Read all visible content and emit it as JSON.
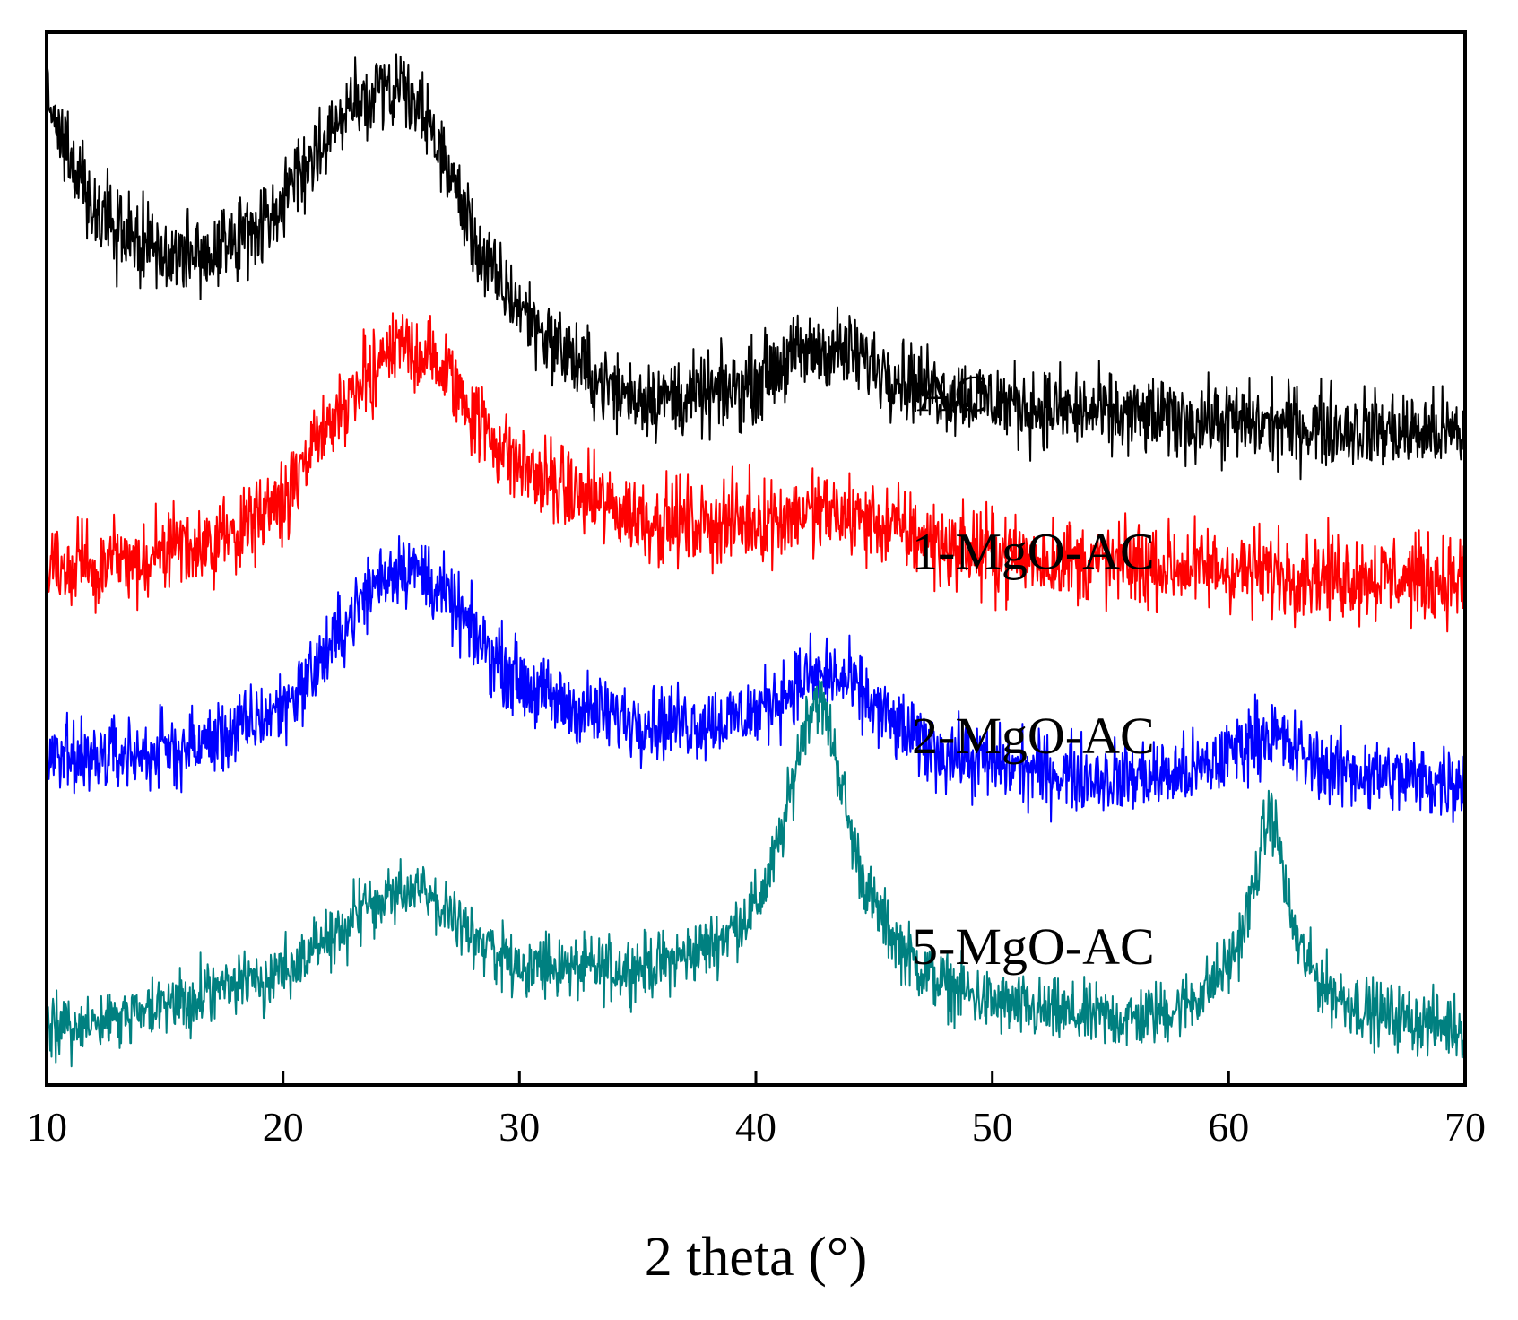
{
  "chart_data": {
    "type": "line",
    "title": "",
    "xlabel": "2 theta (°)",
    "ylabel": "",
    "xlim": [
      10,
      70
    ],
    "xticks": [
      10,
      20,
      30,
      40,
      50,
      60,
      70
    ],
    "xtick_labels": [
      "10",
      "20",
      "30",
      "40",
      "50",
      "60",
      "70"
    ],
    "ylim": [
      0,
      100
    ],
    "yticks_shown": false,
    "grid": false,
    "legend": "inline labels next to each curve",
    "series": [
      {
        "name": "AC",
        "label": "AC",
        "color": "#000000",
        "noise": 3.0,
        "label_at": [
          46.8,
          64.0
        ],
        "x": [
          10,
          11,
          12,
          13,
          14,
          15,
          16,
          17,
          18,
          19,
          20,
          21,
          22,
          23,
          24,
          25,
          26,
          27,
          27.5,
          28,
          28.5,
          29,
          30,
          31,
          32,
          33,
          34,
          35,
          36,
          37,
          38,
          39,
          40,
          41,
          42,
          43,
          44,
          45,
          46,
          47,
          48,
          50,
          52,
          55,
          58,
          60,
          62,
          65,
          68,
          70
        ],
        "y": [
          94,
          88,
          83,
          81,
          80,
          79,
          78.5,
          79,
          80,
          82,
          84.5,
          87.5,
          90.5,
          93,
          94.5,
          94,
          92,
          87,
          84,
          81,
          78,
          76.5,
          74,
          71.5,
          69.5,
          67.5,
          66,
          65.5,
          65.3,
          65.3,
          65.5,
          66,
          67,
          68.5,
          69.5,
          70,
          69.5,
          68.5,
          67.5,
          66.5,
          65.8,
          65,
          64.3,
          63.7,
          63.2,
          63,
          62.7,
          62.4,
          62,
          61.8
        ]
      },
      {
        "name": "1-MgO-AC",
        "label": "1-MgO-AC",
        "color": "#ff0000",
        "noise": 3.2,
        "label_at": [
          46.6,
          49.0
        ],
        "x": [
          10,
          12,
          14,
          16,
          18,
          19,
          20,
          21,
          22,
          23,
          24,
          25,
          26,
          27,
          28,
          29,
          30,
          31,
          32,
          33,
          34,
          35,
          36,
          38,
          40,
          41,
          42,
          43,
          44,
          45,
          46,
          47,
          48,
          50,
          52,
          55,
          58,
          60,
          62,
          65,
          68,
          70
        ],
        "y": [
          49,
          49.5,
          50,
          50.8,
          52.5,
          54,
          56,
          59,
          62.5,
          66,
          69,
          70,
          69.5,
          67.5,
          64,
          61,
          59,
          57.5,
          56.5,
          55.5,
          54.8,
          54,
          53.5,
          53.3,
          53.6,
          54,
          54.3,
          54.3,
          54,
          53.5,
          52.8,
          52,
          51.2,
          50.5,
          50,
          49.5,
          49.2,
          49,
          48.7,
          48.4,
          48.1,
          47.9
        ]
      },
      {
        "name": "2-MgO-AC",
        "label": "2-MgO-AC",
        "color": "#0000ff",
        "noise": 2.8,
        "label_at": [
          46.6,
          31.5
        ],
        "x": [
          10,
          12,
          14,
          16,
          18,
          20,
          21,
          22,
          23,
          24,
          25,
          26,
          27,
          28,
          29,
          30,
          31,
          32,
          34,
          36,
          38,
          39,
          40,
          41,
          42,
          43,
          44,
          45,
          46,
          47,
          48,
          50,
          52,
          55,
          58,
          59,
          60,
          61,
          61.5,
          62,
          63,
          64,
          66,
          68,
          70
        ],
        "y": [
          31,
          31.2,
          31.5,
          32,
          33.5,
          36,
          38.5,
          41.5,
          45,
          48,
          49.5,
          48.5,
          46,
          43,
          40.5,
          38.5,
          37,
          36,
          35,
          34.5,
          34.5,
          34.8,
          35.5,
          37,
          38.5,
          39,
          38,
          36,
          34,
          32.5,
          31.5,
          30.5,
          29.8,
          29.2,
          29.5,
          30,
          31.5,
          33,
          33.5,
          33,
          31.5,
          30.3,
          29.5,
          29,
          28.8
        ]
      },
      {
        "name": "5-MgO-AC",
        "label": "5-MgO-AC",
        "color": "#008080",
        "noise": 2.4,
        "label_at": [
          46.6,
          11.5
        ],
        "x": [
          10,
          12,
          14,
          16,
          18,
          20,
          21,
          22,
          23,
          24,
          25,
          26,
          27,
          28,
          29,
          30,
          32,
          34,
          36,
          37,
          38,
          39,
          40,
          40.5,
          41,
          41.5,
          42,
          42.5,
          43,
          43.5,
          44,
          44.5,
          45,
          46,
          47,
          48,
          50,
          52,
          54,
          56,
          57,
          58,
          59,
          60,
          60.5,
          61,
          61.5,
          61.8,
          62.2,
          62.5,
          63,
          63.5,
          64,
          65,
          66,
          68,
          70
        ],
        "y": [
          5.5,
          6,
          7,
          8,
          9.5,
          11,
          12.5,
          14,
          16,
          17.5,
          18.3,
          18,
          16.5,
          14.5,
          12.5,
          11.5,
          11,
          11,
          11.5,
          12.3,
          13.2,
          14.8,
          17,
          19.5,
          23,
          28,
          34,
          37,
          35,
          30,
          24,
          20,
          17,
          13.5,
          11,
          9.5,
          7.8,
          7,
          6.5,
          6.3,
          6.8,
          7.5,
          9,
          11.5,
          14,
          18,
          24,
          26,
          22,
          17,
          13,
          11,
          9.5,
          8,
          7,
          6,
          5.5
        ]
      }
    ]
  }
}
